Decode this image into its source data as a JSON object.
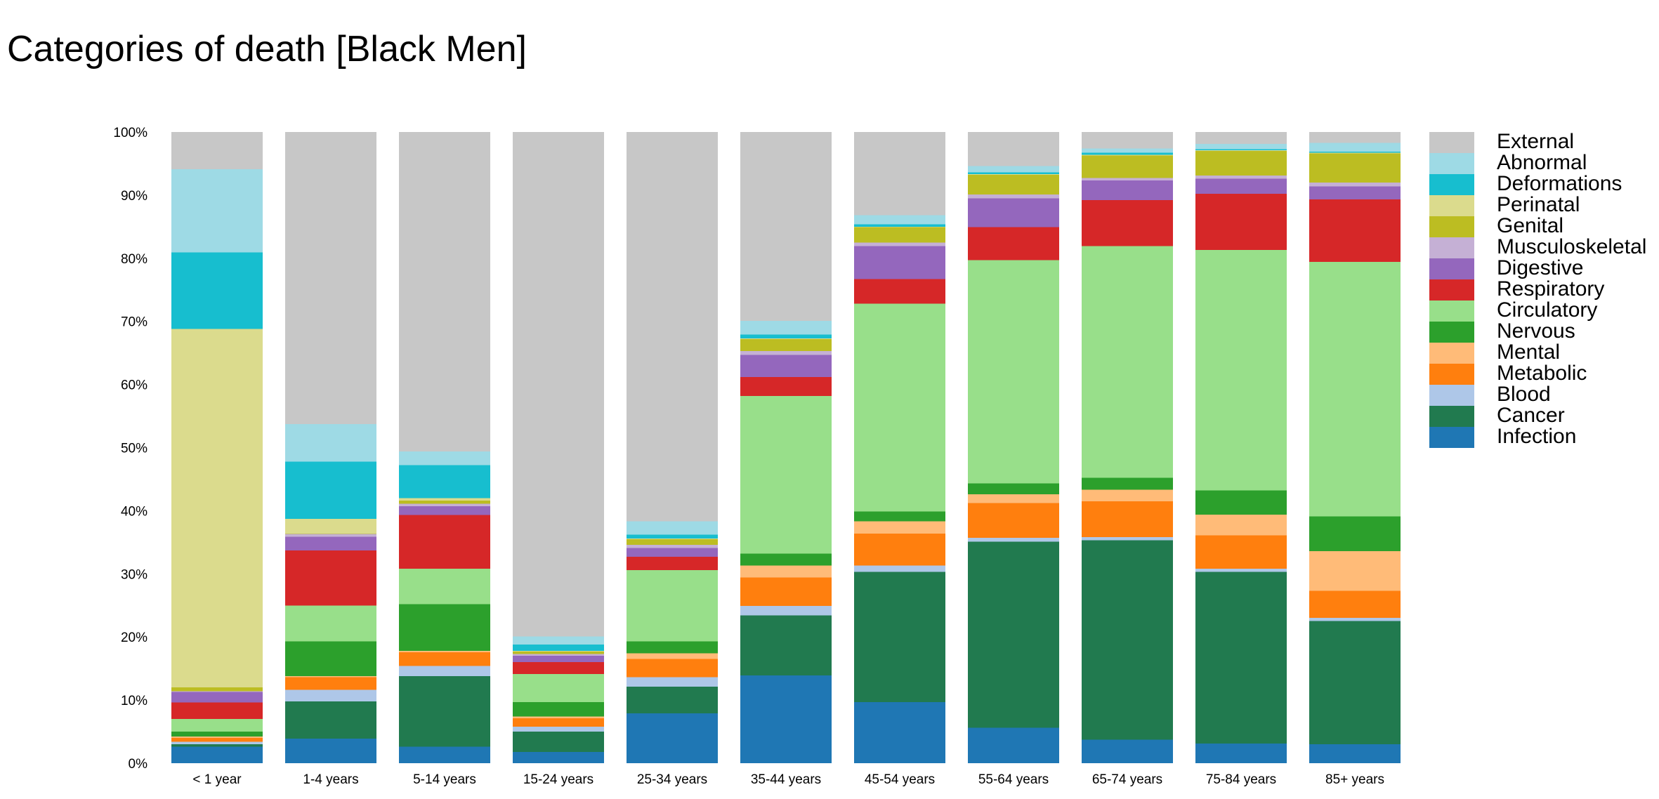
{
  "chart_data": {
    "type": "bar",
    "stacked": true,
    "normalized": true,
    "title": "Categories of death [Black Men]",
    "xlabel": "",
    "ylabel": "",
    "ylim": [
      0,
      100
    ],
    "yticks": [
      "0%",
      "10%",
      "20%",
      "30%",
      "40%",
      "50%",
      "60%",
      "70%",
      "80%",
      "90%",
      "100%"
    ],
    "grid": false,
    "legend_position": "right",
    "categories": [
      "< 1 year",
      "1-4 years",
      "5-14 years",
      "15-24 years",
      "25-34 years",
      "35-44 years",
      "45-54 years",
      "55-64 years",
      "65-74 years",
      "75-84 years",
      "85+ years"
    ],
    "series": [
      {
        "name": "Infection",
        "color": "#1f77b4",
        "values": [
          2.6,
          3.9,
          2.6,
          1.8,
          7.9,
          13.9,
          9.7,
          5.6,
          3.7,
          3.1,
          3.0
        ]
      },
      {
        "name": "Cancer",
        "color": "#217a4f",
        "values": [
          0.4,
          5.9,
          11.2,
          3.2,
          4.2,
          9.5,
          20.6,
          29.5,
          31.6,
          27.2,
          19.5
        ]
      },
      {
        "name": "Blood",
        "color": "#aec7e8",
        "values": [
          0.4,
          1.8,
          1.6,
          0.8,
          1.5,
          1.5,
          1.0,
          0.6,
          0.5,
          0.5,
          0.5
        ]
      },
      {
        "name": "Metabolic",
        "color": "#ff7f0e",
        "values": [
          0.6,
          2.0,
          2.2,
          1.3,
          2.9,
          4.5,
          5.1,
          5.5,
          5.7,
          5.3,
          4.3
        ]
      },
      {
        "name": "Mental",
        "color": "#ffbb78",
        "values": [
          0.2,
          0.2,
          0.2,
          0.3,
          0.9,
          1.9,
          1.9,
          1.4,
          1.8,
          3.3,
          6.3
        ]
      },
      {
        "name": "Nervous",
        "color": "#2ca02c",
        "values": [
          0.8,
          5.5,
          7.4,
          2.3,
          1.9,
          1.9,
          1.6,
          1.7,
          1.9,
          3.8,
          5.5
        ]
      },
      {
        "name": "Circulatory",
        "color": "#98df8a",
        "values": [
          2.0,
          5.7,
          5.6,
          4.4,
          11.3,
          25.0,
          32.9,
          35.4,
          36.7,
          38.1,
          40.3
        ]
      },
      {
        "name": "Respiratory",
        "color": "#d62728",
        "values": [
          2.6,
          8.7,
          8.5,
          1.9,
          2.1,
          3.0,
          3.9,
          5.2,
          7.3,
          8.9,
          9.9
        ]
      },
      {
        "name": "Digestive",
        "color": "#9467bd",
        "values": [
          1.7,
          2.2,
          1.4,
          1.0,
          1.4,
          3.5,
          5.2,
          4.6,
          3.1,
          2.4,
          2.1
        ]
      },
      {
        "name": "Musculoskeletal",
        "color": "#c5b0d5",
        "values": [
          0.1,
          0.4,
          0.4,
          0.3,
          0.5,
          0.6,
          0.6,
          0.6,
          0.4,
          0.5,
          0.6
        ]
      },
      {
        "name": "Genital",
        "color": "#bcbd22",
        "values": [
          0.6,
          0.1,
          0.5,
          0.4,
          0.9,
          1.9,
          2.4,
          3.1,
          3.6,
          3.9,
          4.6
        ]
      },
      {
        "name": "Perinatal",
        "color": "#dbdb8d",
        "values": [
          56.8,
          2.3,
          0.4,
          0.1,
          0.1,
          0.1,
          0.1,
          0.1,
          0.1,
          0.1,
          0.1
        ]
      },
      {
        "name": "Deformations",
        "color": "#17becf",
        "values": [
          12.1,
          9.1,
          5.2,
          1.0,
          0.6,
          0.6,
          0.4,
          0.3,
          0.3,
          0.2,
          0.2
        ]
      },
      {
        "name": "Abnormal",
        "color": "#9edae5",
        "values": [
          13.2,
          5.9,
          2.2,
          1.3,
          2.1,
          2.2,
          1.4,
          1.0,
          0.7,
          0.8,
          1.4
        ]
      },
      {
        "name": "External",
        "color": "#c7c7c7",
        "values": [
          5.9,
          46.3,
          50.6,
          79.9,
          61.7,
          29.9,
          13.2,
          5.4,
          2.6,
          1.9,
          1.7
        ]
      }
    ]
  }
}
